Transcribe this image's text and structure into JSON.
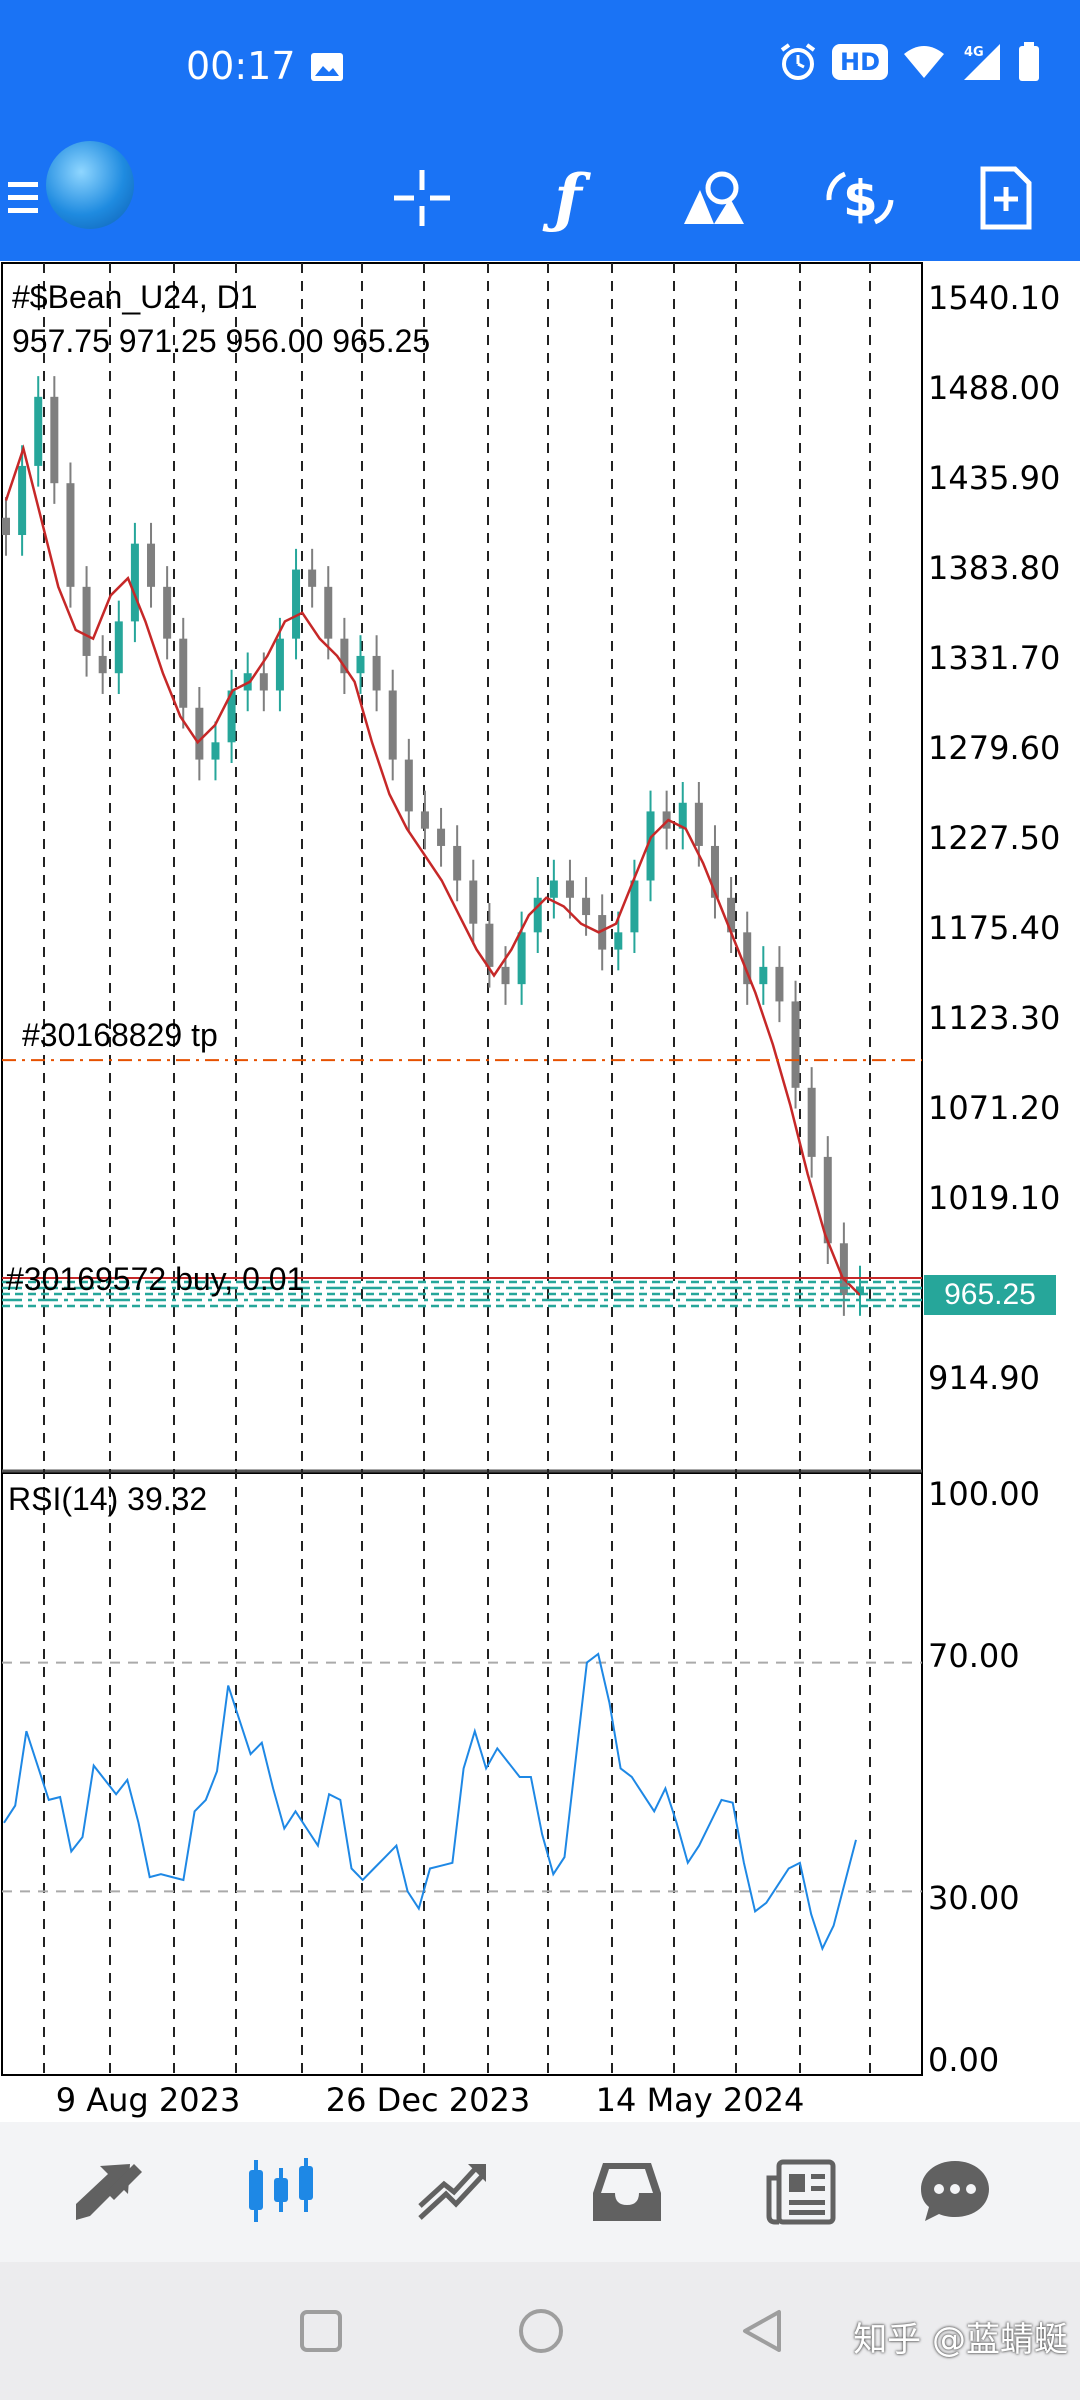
{
  "status_bar": {
    "time": "00:17",
    "hd_badge": "HD",
    "network": "4G",
    "icons": [
      "photo-icon",
      "alarm-icon",
      "wifi-icon",
      "signal-icon",
      "battery-icon"
    ]
  },
  "toolbar": {
    "icons": [
      "menu-icon",
      "app-logo",
      "crosshair-icon",
      "indicator-icon",
      "objects-icon",
      "trade-icon",
      "new-order-icon"
    ],
    "indicator_glyph": "ƒ"
  },
  "chart": {
    "symbol": "#$Bean_U24, D1",
    "ohlc": "957.75 971.25 956.00 965.25",
    "tp_label": "#30168829 tp",
    "buy_label": "#30169572 buy, 0.01",
    "current_price": "965.25",
    "price_labels": [
      "1540.10",
      "1488.00",
      "1435.90",
      "1383.80",
      "1331.70",
      "1279.60",
      "1227.50",
      "1175.40",
      "1123.30",
      "1071.20",
      "1019.10",
      "914.90"
    ],
    "rsi_label": "RSI(14) 39.32",
    "rsi_labels": [
      "100.00",
      "70.00",
      "30.00",
      "0.00"
    ],
    "date_labels": [
      "9 Aug 2023",
      "26 Dec 2023",
      "14 May 2024"
    ],
    "colors": {
      "candle_up": "#26a69a",
      "candle_down": "#7f7f7f",
      "moving_average": "#c62828",
      "rsi_line": "#1e88e5",
      "tp_line": "#e65100",
      "order_lines": "#26a69a",
      "price_line": "#c62828"
    }
  },
  "chart_data": [
    {
      "type": "candlestick",
      "title": "#$Bean_U24, D1",
      "ylim": [
        880,
        1560
      ],
      "close_series_approx": [
        1400,
        1440,
        1480,
        1430,
        1370,
        1330,
        1320,
        1350,
        1395,
        1370,
        1340,
        1300,
        1270,
        1280,
        1310,
        1320,
        1310,
        1340,
        1380,
        1370,
        1340,
        1320,
        1330,
        1310,
        1270,
        1240,
        1230,
        1220,
        1200,
        1175,
        1150,
        1140,
        1170,
        1190,
        1200,
        1190,
        1180,
        1160,
        1170,
        1200,
        1240,
        1230,
        1245,
        1220,
        1190,
        1170,
        1140,
        1150,
        1130,
        1080,
        1040,
        990,
        960,
        965
      ],
      "moving_average_approx": [
        1420,
        1450,
        1410,
        1370,
        1345,
        1340,
        1365,
        1375,
        1350,
        1320,
        1295,
        1280,
        1290,
        1310,
        1315,
        1330,
        1350,
        1355,
        1340,
        1330,
        1315,
        1280,
        1250,
        1230,
        1215,
        1200,
        1180,
        1160,
        1145,
        1160,
        1180,
        1190,
        1185,
        1175,
        1170,
        1175,
        1200,
        1225,
        1235,
        1230,
        1210,
        1185,
        1160,
        1135,
        1105,
        1070,
        1030,
        995,
        970,
        960
      ],
      "horizontal_levels": [
        {
          "name": "#30168829 tp",
          "value": 1096
        },
        {
          "name": "#30169572 buy, 0.01",
          "value": 965.25
        }
      ]
    },
    {
      "type": "line",
      "title": "RSI(14) 39.32",
      "ylim": [
        0,
        100
      ],
      "levels": [
        70,
        30
      ],
      "values_approx": [
        42,
        58,
        46,
        37,
        52,
        47,
        42,
        33,
        32,
        46,
        66,
        54,
        48,
        44,
        38,
        46,
        32,
        36,
        30,
        34,
        35,
        58,
        55,
        50,
        40,
        36,
        70,
        63,
        50,
        44,
        42,
        38,
        46,
        35,
        28,
        34,
        26,
        24,
        39
      ]
    }
  ],
  "bottom_nav": {
    "items": [
      "quotes-icon",
      "chart-icon",
      "trade-icon",
      "history-icon",
      "news-icon",
      "chat-icon"
    ],
    "active": "chart-icon"
  },
  "system_nav": {
    "buttons": [
      "recent-apps-icon",
      "home-icon",
      "back-icon"
    ]
  },
  "watermark": "知乎 @蓝蜻蜓"
}
